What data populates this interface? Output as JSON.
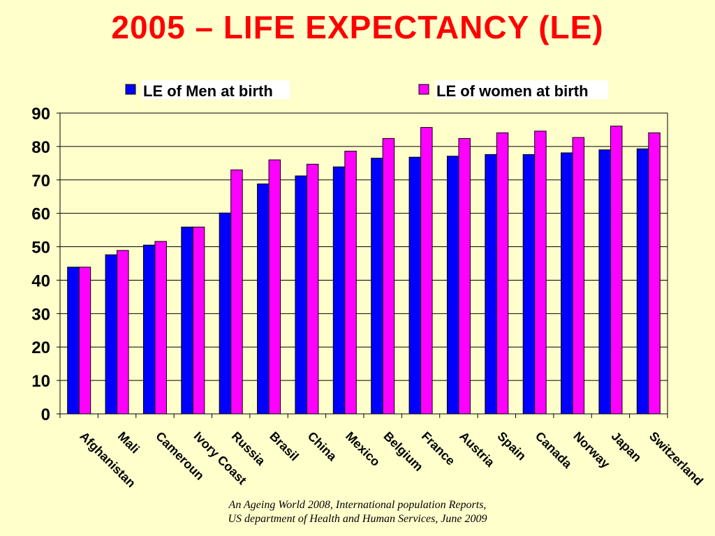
{
  "slide": {
    "title": "2005 – LIFE EXPECTANCY (LE)",
    "source_line1": "An Ageing World 2008, International population Reports,",
    "source_line2": "US department of Health and Human Services, June  2009"
  },
  "chart_data": {
    "type": "bar",
    "title": "",
    "xlabel": "",
    "ylabel": "",
    "ylim": [
      0,
      90
    ],
    "yticks": [
      0,
      10,
      20,
      30,
      40,
      50,
      60,
      70,
      80,
      90
    ],
    "grid": true,
    "legend": "top",
    "categories": [
      "Afghanistan",
      "Mali",
      "Cameroun",
      "Ivory Coast",
      "Russia",
      "Brasil",
      "China",
      "Mexico",
      "Belgium",
      "France",
      "Austria",
      "Spain",
      "Canada",
      "Norway",
      "Japan",
      "Switzerland"
    ],
    "series": [
      {
        "name": "LE of Men at birth",
        "color": "#0000FF",
        "values": [
          43.9,
          47.6,
          50.5,
          55.9,
          60.1,
          68.8,
          71.2,
          73.9,
          76.5,
          76.8,
          77.1,
          77.6,
          77.6,
          78.1,
          79.0,
          79.3
        ]
      },
      {
        "name": "LE of women at birth",
        "color": "#FF00FF",
        "values": [
          43.9,
          48.9,
          51.6,
          55.9,
          73.0,
          76.0,
          74.7,
          78.6,
          82.4,
          85.7,
          82.4,
          84.1,
          84.6,
          82.7,
          86.1,
          84.1
        ]
      }
    ]
  }
}
